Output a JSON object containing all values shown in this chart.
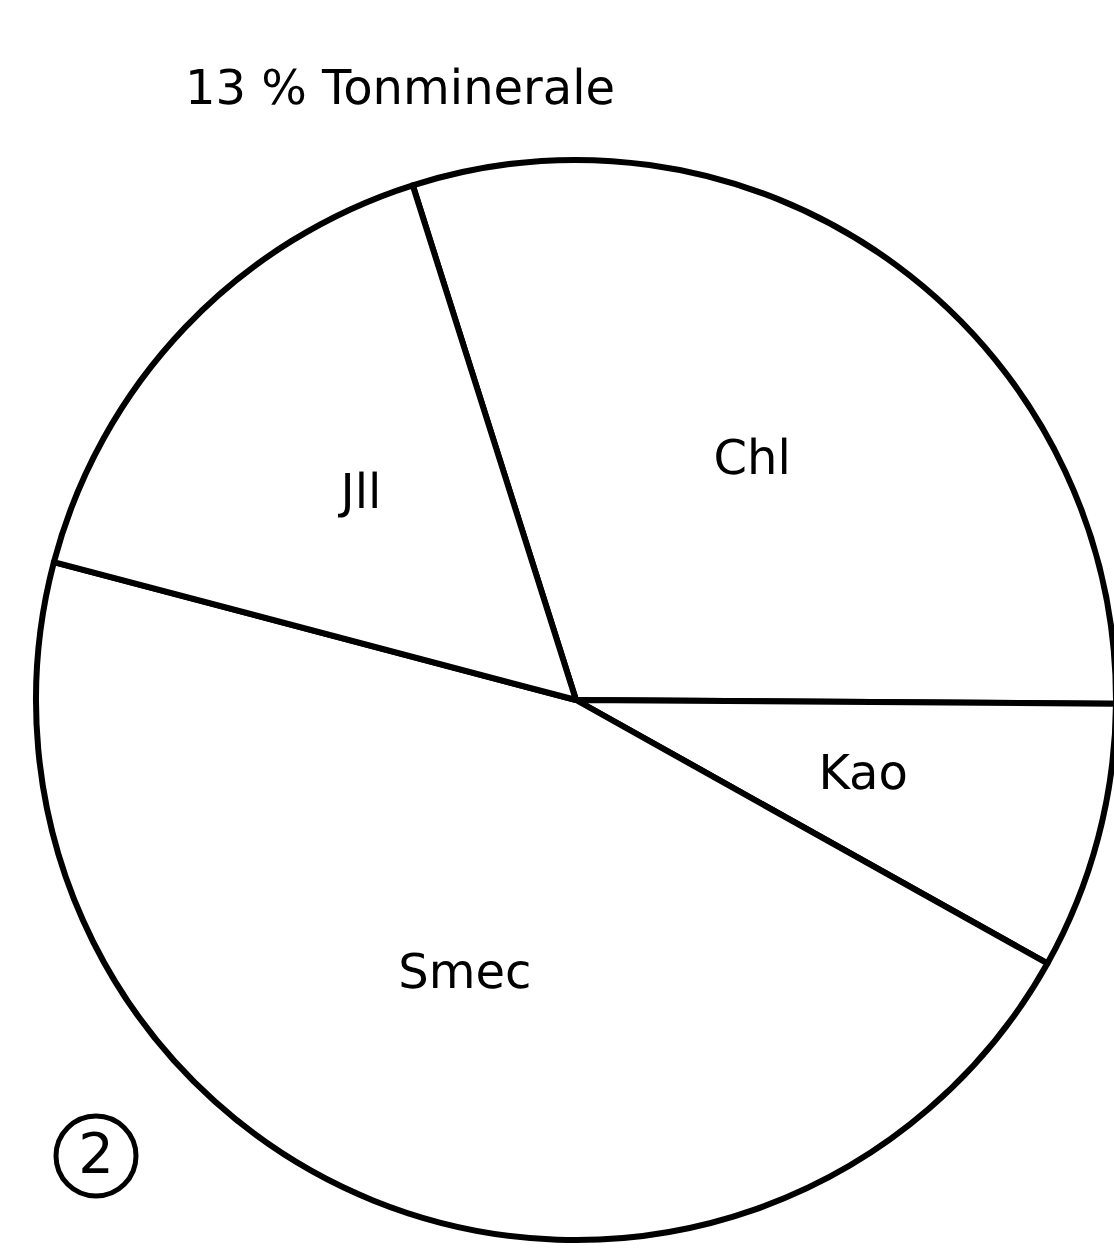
{
  "chart_data": {
    "type": "pie",
    "title": "13 % Tonminerale",
    "categories": [
      "Chl",
      "Kao",
      "Smec",
      "Jll"
    ],
    "values": [
      30,
      8,
      46,
      16
    ],
    "colors": [
      "#ffffff",
      "#ffffff",
      "#ffffff",
      "#ffffff"
    ],
    "annotations": [
      "2"
    ]
  }
}
